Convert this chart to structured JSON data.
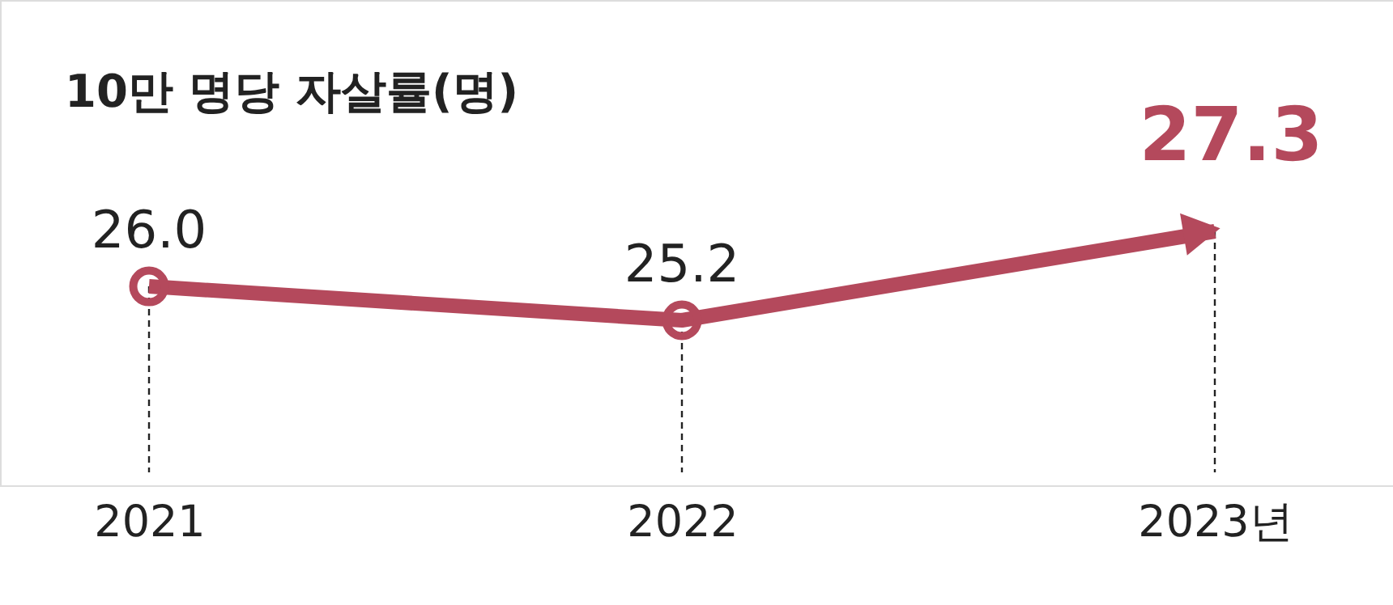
{
  "chart_data": {
    "type": "line",
    "title": "10만 명당 자살률(명)",
    "categories": [
      "2021",
      "2022",
      "2023년"
    ],
    "series": [
      {
        "color": "#b4495c",
        "values": [
          26.0,
          25.2,
          27.3
        ],
        "value_labels": [
          "26.0",
          "25.2",
          "27.3"
        ]
      }
    ],
    "marker": "circle",
    "grid": "x"
  }
}
